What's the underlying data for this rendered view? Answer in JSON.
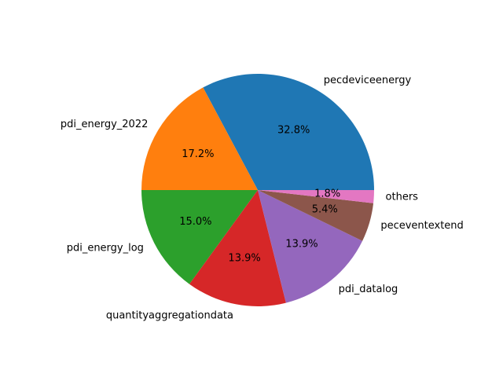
{
  "chart_data": {
    "type": "pie",
    "title": "",
    "start_angle_deg": 0,
    "direction": "counterclockwise",
    "slices": [
      {
        "label": "pecdeviceenergy",
        "value": 32.8,
        "pct_text": "32.8%",
        "color": "#1f77b4"
      },
      {
        "label": "pdi_energy_2022",
        "value": 17.2,
        "pct_text": "17.2%",
        "color": "#ff7f0e"
      },
      {
        "label": "pdi_energy_log",
        "value": 15.0,
        "pct_text": "15.0%",
        "color": "#2ca02c"
      },
      {
        "label": "quantityaggregationdata",
        "value": 13.9,
        "pct_text": "13.9%",
        "color": "#d62728"
      },
      {
        "label": "pdi_datalog",
        "value": 13.9,
        "pct_text": "13.9%",
        "color": "#9467bd"
      },
      {
        "label": "peceventextend",
        "value": 5.4,
        "pct_text": "5.4%",
        "color": "#8c564b"
      },
      {
        "label": "others",
        "value": 1.8,
        "pct_text": "1.8%",
        "color": "#e377c2"
      }
    ]
  }
}
